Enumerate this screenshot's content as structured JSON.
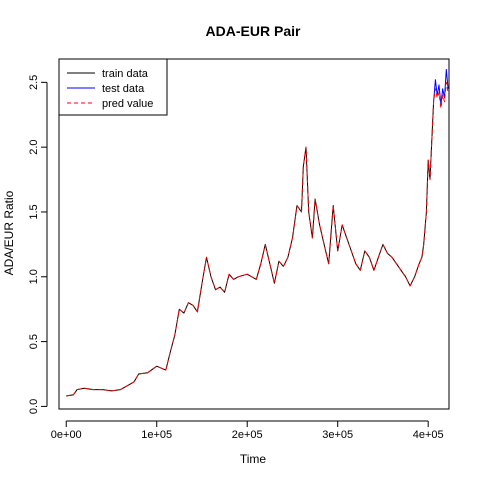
{
  "chart_data": {
    "type": "line",
    "title": "ADA-EUR Pair",
    "xlabel": "Time",
    "ylabel": "ADA/EUR Ratio",
    "xlim": [
      -8000,
      423000
    ],
    "ylim": [
      -0.02,
      2.68
    ],
    "x_ticks": [
      {
        "value": 0,
        "label": "0e+00"
      },
      {
        "value": 100000,
        "label": "1e+05"
      },
      {
        "value": 200000,
        "label": "2e+05"
      },
      {
        "value": 300000,
        "label": "3e+05"
      },
      {
        "value": 400000,
        "label": "4e+05"
      }
    ],
    "y_ticks": [
      {
        "value": 0.0,
        "label": "0.0"
      },
      {
        "value": 0.5,
        "label": "0.5"
      },
      {
        "value": 1.0,
        "label": "1.0"
      },
      {
        "value": 1.5,
        "label": "1.5"
      },
      {
        "value": 2.0,
        "label": "2.0"
      },
      {
        "value": 2.5,
        "label": "2.5"
      }
    ],
    "grid": false,
    "legend_position": "top-left",
    "series": [
      {
        "name": "train data",
        "color": "#000000",
        "dash": "solid",
        "x": [
          0,
          8000,
          12000,
          20000,
          30000,
          40000,
          50000,
          60000,
          70000,
          75000,
          80000,
          90000,
          100000,
          110000,
          115000,
          120000,
          125000,
          130000,
          135000,
          140000,
          145000,
          150000,
          155000,
          160000,
          165000,
          170000,
          175000,
          180000,
          185000,
          190000,
          200000,
          210000,
          215000,
          220000,
          225000,
          230000,
          235000,
          240000,
          245000,
          250000,
          255000,
          260000,
          262000,
          265000,
          268000,
          272000,
          275000,
          280000,
          285000,
          290000,
          295000,
          300000,
          305000,
          310000,
          315000,
          320000,
          325000,
          330000,
          335000,
          340000,
          345000,
          350000,
          355000,
          360000,
          365000,
          370000,
          375000,
          380000,
          385000,
          390000,
          393000,
          395000,
          398000,
          400000,
          402000,
          404000,
          406000
        ],
        "values": [
          0.08,
          0.09,
          0.13,
          0.14,
          0.13,
          0.13,
          0.12,
          0.13,
          0.17,
          0.19,
          0.25,
          0.26,
          0.31,
          0.28,
          0.42,
          0.55,
          0.75,
          0.72,
          0.8,
          0.78,
          0.73,
          0.95,
          1.15,
          1.0,
          0.9,
          0.92,
          0.88,
          1.02,
          0.98,
          1.0,
          1.02,
          0.98,
          1.1,
          1.25,
          1.1,
          0.95,
          1.12,
          1.08,
          1.15,
          1.3,
          1.55,
          1.5,
          1.85,
          2.0,
          1.5,
          1.3,
          1.6,
          1.4,
          1.25,
          1.1,
          1.55,
          1.2,
          1.4,
          1.3,
          1.2,
          1.1,
          1.05,
          1.2,
          1.15,
          1.05,
          1.15,
          1.25,
          1.18,
          1.15,
          1.1,
          1.05,
          1.0,
          0.93,
          1.0,
          1.1,
          1.15,
          1.25,
          1.5,
          1.9,
          1.75,
          2.05,
          2.35
        ]
      },
      {
        "name": "test data",
        "color": "#0000ff",
        "dash": "solid",
        "x": [
          406000,
          408000,
          410000,
          412000,
          414000,
          416000,
          418000,
          420000,
          422000
        ],
        "values": [
          2.35,
          2.52,
          2.4,
          2.48,
          2.33,
          2.45,
          2.38,
          2.6,
          2.45
        ]
      },
      {
        "name": "pred value",
        "color": "#ff0000",
        "dash": "dashed",
        "x": [
          0,
          8000,
          12000,
          20000,
          30000,
          40000,
          50000,
          60000,
          70000,
          75000,
          80000,
          90000,
          100000,
          110000,
          115000,
          120000,
          125000,
          130000,
          135000,
          140000,
          145000,
          150000,
          155000,
          160000,
          165000,
          170000,
          175000,
          180000,
          185000,
          190000,
          200000,
          210000,
          215000,
          220000,
          225000,
          230000,
          235000,
          240000,
          245000,
          250000,
          255000,
          260000,
          262000,
          265000,
          268000,
          272000,
          275000,
          280000,
          285000,
          290000,
          295000,
          300000,
          305000,
          310000,
          315000,
          320000,
          325000,
          330000,
          335000,
          340000,
          345000,
          350000,
          355000,
          360000,
          365000,
          370000,
          375000,
          380000,
          385000,
          390000,
          393000,
          395000,
          398000,
          400000,
          402000,
          404000,
          406000,
          408000,
          410000,
          412000,
          414000,
          416000,
          418000,
          420000,
          422000
        ],
        "values": [
          0.08,
          0.09,
          0.13,
          0.14,
          0.13,
          0.13,
          0.12,
          0.13,
          0.17,
          0.19,
          0.25,
          0.26,
          0.31,
          0.28,
          0.42,
          0.55,
          0.75,
          0.72,
          0.8,
          0.78,
          0.73,
          0.95,
          1.15,
          1.0,
          0.9,
          0.92,
          0.88,
          1.02,
          0.98,
          1.0,
          1.02,
          0.98,
          1.1,
          1.25,
          1.1,
          0.95,
          1.12,
          1.08,
          1.15,
          1.3,
          1.55,
          1.5,
          1.85,
          2.0,
          1.5,
          1.3,
          1.6,
          1.4,
          1.25,
          1.1,
          1.55,
          1.2,
          1.4,
          1.3,
          1.2,
          1.1,
          1.05,
          1.2,
          1.15,
          1.05,
          1.15,
          1.25,
          1.18,
          1.15,
          1.1,
          1.05,
          1.0,
          0.93,
          1.0,
          1.1,
          1.15,
          1.25,
          1.5,
          1.9,
          1.75,
          2.05,
          2.35,
          2.45,
          2.38,
          2.42,
          2.3,
          2.4,
          2.35,
          2.5,
          2.42
        ]
      }
    ]
  }
}
